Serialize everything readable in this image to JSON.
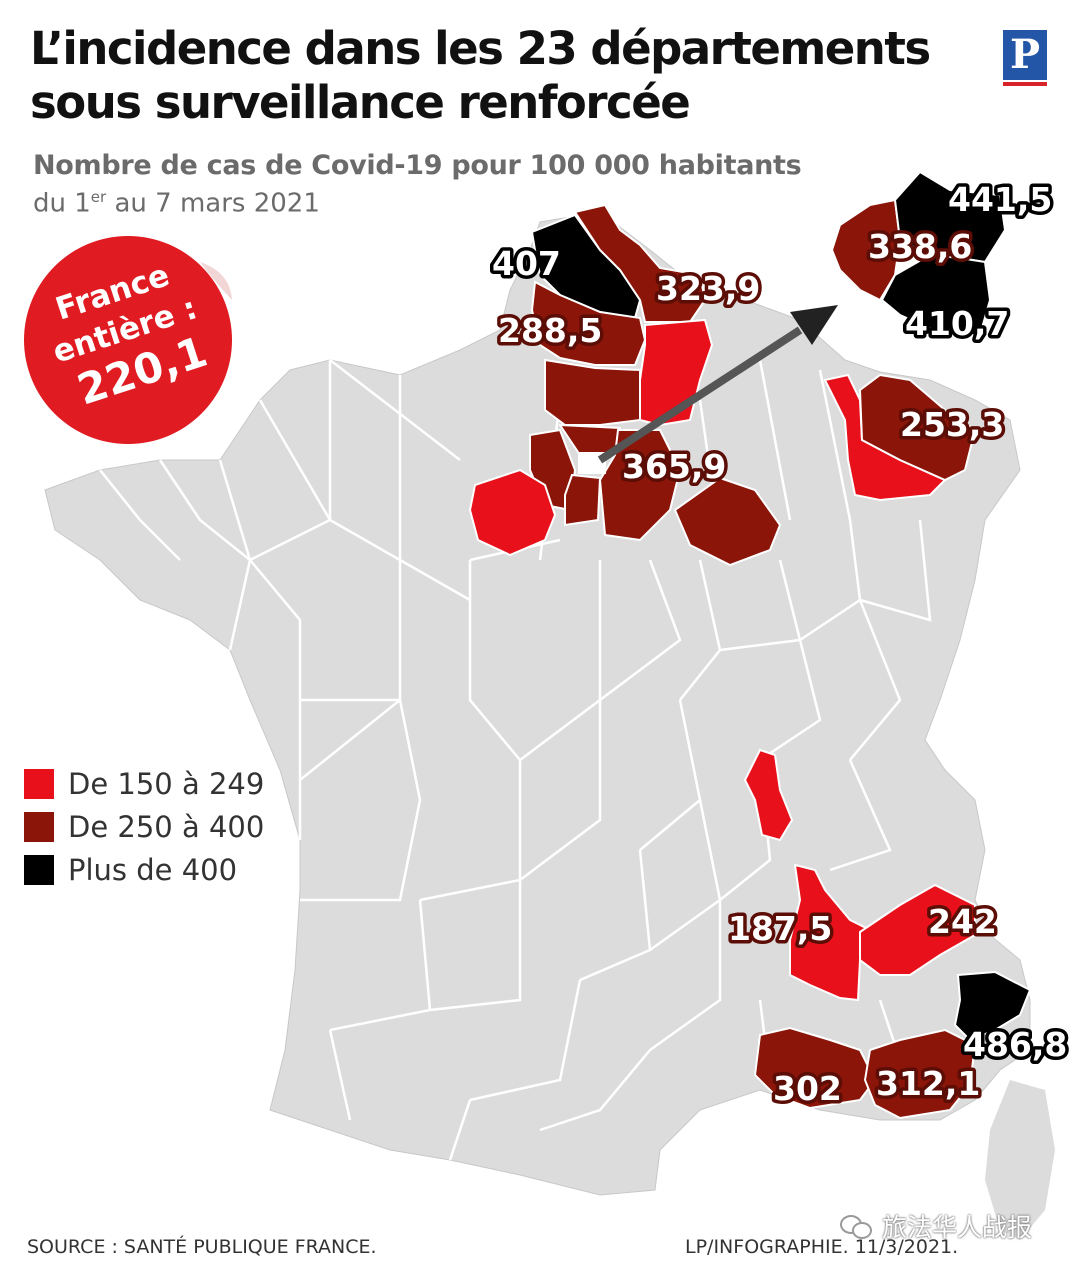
{
  "title": {
    "line1": "L’incidence dans les 23 départements",
    "line2": "sous surveillance renforcée"
  },
  "subtitle": "Nombre de cas de Covid-19 pour 100 000 habitants",
  "dateline": {
    "prefix": "du 1",
    "superscript": "er",
    "suffix": " au 7 mars 2021"
  },
  "logo": {
    "letter": "P"
  },
  "sticker": {
    "line1": "France",
    "line2": "entière :",
    "value": "220,1"
  },
  "legend": [
    {
      "label": "De 150 à 249",
      "color": "#e8101a"
    },
    {
      "label": "De 250 à 400",
      "color": "#8a1508"
    },
    {
      "label": "Plus de 400",
      "color": "#000000"
    }
  ],
  "map_labels": {
    "nord": "323,9",
    "pas_de_calais": "407",
    "somme_oise": "288,5",
    "ile_de_france": "365,9",
    "moselle": "253,3",
    "paris": "441,5",
    "hauts_de_seine": "338,6",
    "val_de_marne": "410,7",
    "drome": "187,5",
    "hautes_alpes": "242",
    "alpes_maritimes": "486,8",
    "bouches_du_rhone": "302",
    "var": "312,1"
  },
  "colors": {
    "land": "#dcdcdc",
    "border": "#ffffff",
    "tier1": "#e8101a",
    "tier2": "#8a1508",
    "tier3": "#000000",
    "sticker": "#e01b22"
  },
  "footer": {
    "source": "SOURCE : SANTÉ PUBLIQUE FRANCE.",
    "credit": "LP/INFOGRAPHIE.  11/3/2021."
  },
  "wechat": {
    "label": "旅法华人战报"
  }
}
